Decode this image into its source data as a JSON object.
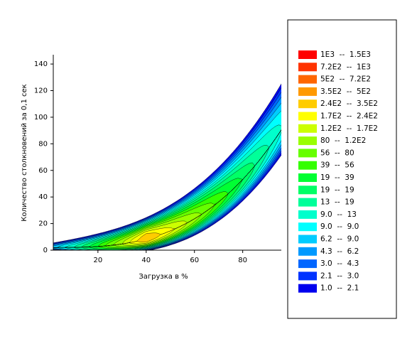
{
  "chart_data": {
    "type": "contour",
    "xlabel": "Загрузка в %",
    "ylabel": "Количество столкновений за 0,1 сек",
    "xlim": [
      1.5,
      96
    ],
    "ylim": [
      0,
      147
    ],
    "xticks": [
      20,
      40,
      60,
      80
    ],
    "yticks": [
      0,
      20,
      40,
      60,
      80,
      100,
      120,
      140
    ],
    "series": [
      {
        "name": "1E3  --  1.5E3",
        "color": "#ff0000"
      },
      {
        "name": "7.2E2  --  1E3",
        "color": "#ff3300"
      },
      {
        "name": "5E2  --  7.2E2",
        "color": "#ff6600"
      },
      {
        "name": "3.5E2  --  5E2",
        "color": "#ff9900"
      },
      {
        "name": "2.4E2  --  3.5E2",
        "color": "#ffcc00"
      },
      {
        "name": "1.7E2  --  2.4E2",
        "color": "#ffff00"
      },
      {
        "name": "1.2E2  --  1.7E2",
        "color": "#ccff00"
      },
      {
        "name": "80  --  1.2E2",
        "color": "#99ff00"
      },
      {
        "name": "56  --  80",
        "color": "#66ff00"
      },
      {
        "name": "39  --  56",
        "color": "#33ff00"
      },
      {
        "name": "19  --  39",
        "color": "#00ff33"
      },
      {
        "name": "19  --  19",
        "color": "#00ff66"
      },
      {
        "name": "13  --  19",
        "color": "#00ff99"
      },
      {
        "name": "9.0  --  13",
        "color": "#00ffcc"
      },
      {
        "name": "9.0  --  9.0",
        "color": "#00ffff"
      },
      {
        "name": "6.2  --  9.0",
        "color": "#00ccff"
      },
      {
        "name": "4.3  --  6.2",
        "color": "#0099ff"
      },
      {
        "name": "3.0  --  4.3",
        "color": "#0066ff"
      },
      {
        "name": "2.1  --  3.0",
        "color": "#0033ff"
      },
      {
        "name": "1.0  --  2.1",
        "color": "#0000ee"
      }
    ]
  }
}
